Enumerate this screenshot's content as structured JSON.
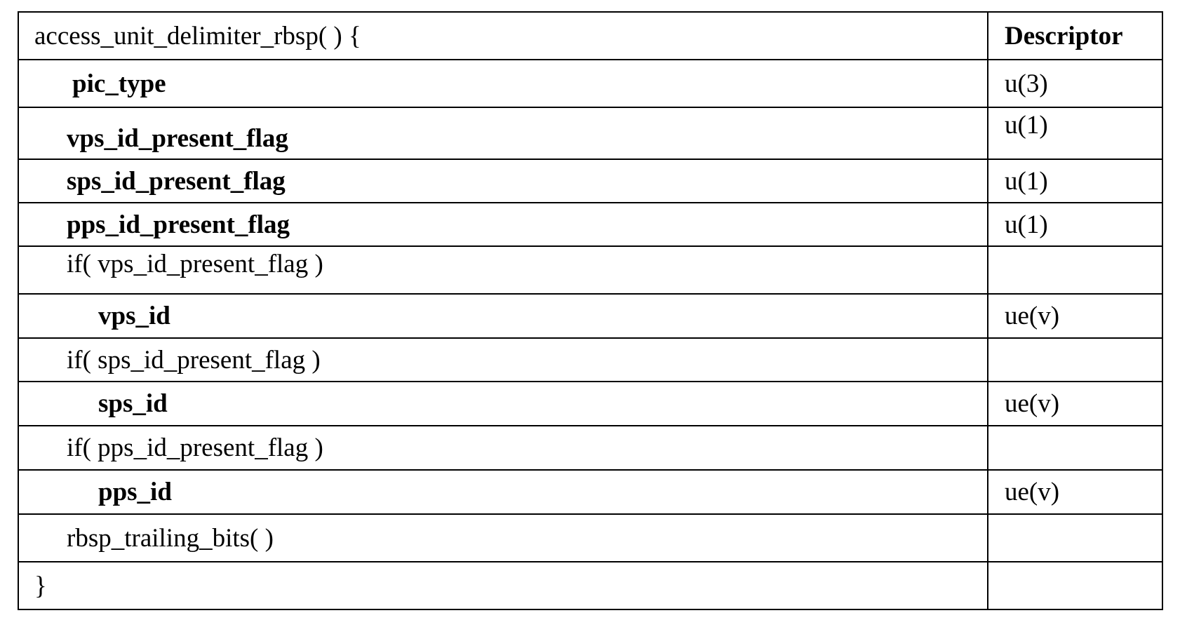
{
  "header": {
    "syntax": "access_unit_delimiter_rbsp( ) {",
    "descriptor": "Descriptor"
  },
  "rows": [
    {
      "syntax": "pic_type",
      "descriptor": "u(3)",
      "bold": true
    },
    {
      "syntax": "vps_id_present_flag",
      "descriptor": "u(1)",
      "bold": true
    },
    {
      "syntax": "sps_id_present_flag",
      "descriptor": "u(1)",
      "bold": true
    },
    {
      "syntax": "pps_id_present_flag",
      "descriptor": "u(1)",
      "bold": true
    },
    {
      "syntax": "if( vps_id_present_flag )",
      "descriptor": ""
    },
    {
      "syntax": "vps_id",
      "descriptor": "ue(v)",
      "bold": true
    },
    {
      "syntax": "if( sps_id_present_flag )",
      "descriptor": ""
    },
    {
      "syntax": "sps_id",
      "descriptor": "ue(v)",
      "bold": true
    },
    {
      "syntax": "if( pps_id_present_flag )",
      "descriptor": ""
    },
    {
      "syntax": "pps_id",
      "descriptor": "ue(v)",
      "bold": true
    },
    {
      "syntax": "rbsp_trailing_bits( )",
      "descriptor": ""
    },
    {
      "syntax": "}",
      "descriptor": ""
    }
  ]
}
